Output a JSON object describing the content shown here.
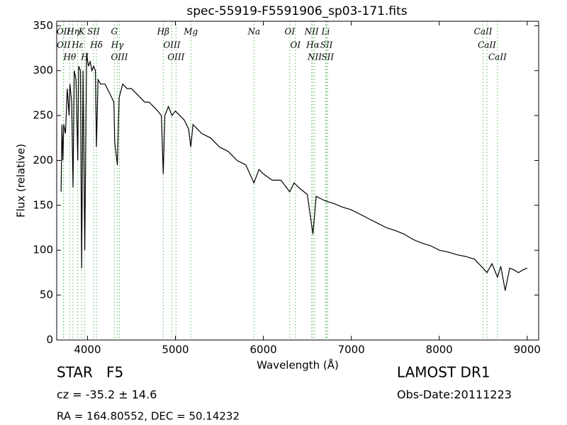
{
  "chart_data": {
    "type": "line",
    "title": "spec-55919-F5591906_sp03-171.fits",
    "x_label": "Wavelength (Å)",
    "y_label": "Flux (relative)",
    "xlim": [
      3650,
      9130
    ],
    "ylim": [
      0,
      355
    ],
    "xticks": [
      4000,
      5000,
      6000,
      7000,
      8000,
      9000
    ],
    "yticks": [
      0,
      50,
      100,
      150,
      200,
      250,
      300,
      350
    ],
    "color": "#000000",
    "line_color": "#5cb85c",
    "x": [
      3700,
      3710,
      3720,
      3730,
      3750,
      3770,
      3790,
      3800,
      3820,
      3835,
      3850,
      3870,
      3889,
      3900,
      3920,
      3934,
      3950,
      3969,
      3990,
      4010,
      4030,
      4050,
      4070,
      4090,
      4102,
      4120,
      4150,
      4200,
      4250,
      4300,
      4310,
      4340,
      4360,
      4400,
      4450,
      4500,
      4550,
      4600,
      4650,
      4700,
      4750,
      4800,
      4840,
      4861,
      4880,
      4920,
      4960,
      5000,
      5050,
      5100,
      5150,
      5175,
      5200,
      5300,
      5400,
      5500,
      5600,
      5700,
      5800,
      5893,
      5950,
      6000,
      6100,
      6200,
      6300,
      6350,
      6400,
      6500,
      6563,
      6600,
      6700,
      6800,
      6900,
      7000,
      7100,
      7200,
      7300,
      7400,
      7500,
      7600,
      7700,
      7800,
      7900,
      8000,
      8100,
      8200,
      8300,
      8400,
      8498,
      8542,
      8600,
      8662,
      8700,
      8750,
      8800,
      8850,
      8900,
      8950,
      9000
    ],
    "values": [
      165,
      240,
      200,
      240,
      230,
      280,
      250,
      285,
      265,
      170,
      300,
      290,
      200,
      305,
      300,
      80,
      300,
      100,
      320,
      305,
      310,
      300,
      305,
      300,
      215,
      290,
      285,
      285,
      275,
      265,
      220,
      195,
      270,
      285,
      280,
      280,
      275,
      270,
      265,
      265,
      260,
      255,
      250,
      185,
      250,
      260,
      250,
      255,
      250,
      245,
      235,
      215,
      240,
      230,
      225,
      215,
      210,
      200,
      195,
      175,
      190,
      185,
      178,
      178,
      165,
      175,
      170,
      162,
      118,
      160,
      155,
      152,
      148,
      145,
      140,
      135,
      130,
      125,
      122,
      118,
      112,
      108,
      105,
      100,
      98,
      95,
      93,
      90,
      80,
      75,
      85,
      70,
      82,
      55,
      80,
      78,
      75,
      78,
      80
    ],
    "lines": [
      {
        "label": "OII",
        "wavelength": 3727
      },
      {
        "label": "OII",
        "wavelength": 3729
      },
      {
        "label": "Hθ",
        "wavelength": 3798
      },
      {
        "label": "Hη",
        "wavelength": 3835
      },
      {
        "label": "Hε",
        "wavelength": 3889
      },
      {
        "label": "K",
        "wavelength": 3934
      },
      {
        "label": "H",
        "wavelength": 3969
      },
      {
        "label": "SII",
        "wavelength": 4069
      },
      {
        "label": "Hδ",
        "wavelength": 4102
      },
      {
        "label": "G",
        "wavelength": 4305
      },
      {
        "label": "Hγ",
        "wavelength": 4340
      },
      {
        "label": "OIII",
        "wavelength": 4363
      },
      {
        "label": "Hβ",
        "wavelength": 4861
      },
      {
        "label": "OIII",
        "wavelength": 4959
      },
      {
        "label": "OIII",
        "wavelength": 5007
      },
      {
        "label": "Mg",
        "wavelength": 5175
      },
      {
        "label": "Na",
        "wavelength": 5893
      },
      {
        "label": "OI",
        "wavelength": 6300
      },
      {
        "label": "OI",
        "wavelength": 6364
      },
      {
        "label": "NII",
        "wavelength": 6548
      },
      {
        "label": "Hα",
        "wavelength": 6563
      },
      {
        "label": "NII",
        "wavelength": 6583
      },
      {
        "label": "Li",
        "wavelength": 6708
      },
      {
        "label": "SII",
        "wavelength": 6717
      },
      {
        "label": "SII",
        "wavelength": 6731
      },
      {
        "label": "CaII",
        "wavelength": 8498
      },
      {
        "label": "CaII",
        "wavelength": 8542
      },
      {
        "label": "CaII",
        "wavelength": 8662
      }
    ],
    "object_class": "STAR   F5",
    "redshift": "cz = -35.2 ± 14.6",
    "coordinates": "RA = 164.80552, DEC = 50.14232",
    "survey": "LAMOST DR1",
    "obs_date": "Obs-Date:20111223"
  }
}
